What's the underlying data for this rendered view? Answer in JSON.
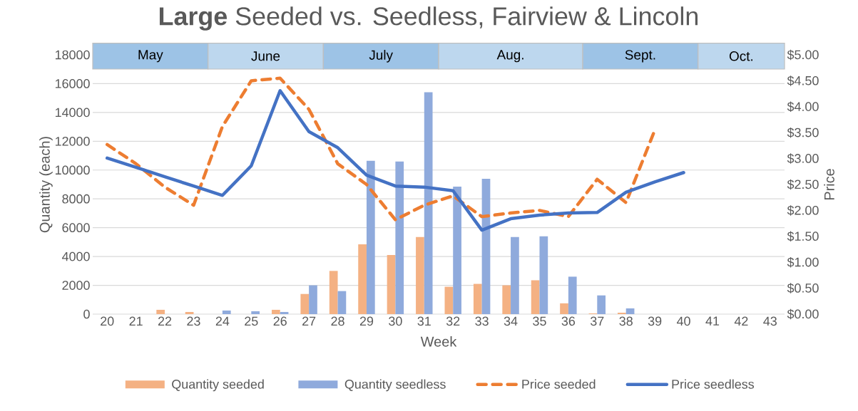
{
  "chart_data": {
    "type": "bar",
    "title": "**Large** Seeded vs. Seedless, Fairview & Lincoln",
    "xlabel": "Week",
    "ylabel": "Quantity (each)",
    "y2label": "Price",
    "x": [
      20,
      21,
      22,
      23,
      24,
      25,
      26,
      27,
      28,
      29,
      30,
      31,
      32,
      33,
      34,
      35,
      36,
      37,
      38,
      39,
      40,
      41,
      42,
      43
    ],
    "xlim": [
      19.5,
      43.5
    ],
    "xticks": [
      20,
      21,
      22,
      23,
      24,
      25,
      26,
      27,
      28,
      29,
      30,
      31,
      32,
      33,
      34,
      35,
      36,
      37,
      38,
      39,
      40,
      41,
      42,
      43
    ],
    "ylim": [
      0,
      18000
    ],
    "yticks": [
      0,
      2000,
      4000,
      6000,
      8000,
      10000,
      12000,
      14000,
      16000,
      18000
    ],
    "y2lim": [
      0,
      5
    ],
    "y2ticks": [
      {
        "value": 0,
        "label": "$0.00"
      },
      {
        "value": 0.5,
        "label": "$0.50"
      },
      {
        "value": 1,
        "label": "$1.00"
      },
      {
        "value": 1.5,
        "label": "$1.50"
      },
      {
        "value": 2,
        "label": "$2.00"
      },
      {
        "value": 2.5,
        "label": "$2.50"
      },
      {
        "value": 3,
        "label": "$3.00"
      },
      {
        "value": 3.5,
        "label": "$3.50"
      },
      {
        "value": 4,
        "label": "$4.00"
      },
      {
        "value": 4.5,
        "label": "$4.50"
      },
      {
        "value": 5,
        "label": "$5.00"
      }
    ],
    "series": [
      {
        "name": "Quantity seeded",
        "color": "#f4b183",
        "values": [
          0,
          0,
          300,
          150,
          0,
          0,
          300,
          1400,
          3000,
          4850,
          4100,
          5350,
          1900,
          2100,
          2000,
          2350,
          750,
          50,
          100,
          0,
          0,
          0,
          0,
          0
        ]
      },
      {
        "name": "Quantity seedless",
        "color": "#8faadc",
        "values": [
          0,
          0,
          0,
          0,
          250,
          200,
          150,
          2000,
          1600,
          10650,
          10600,
          15400,
          8850,
          9400,
          5350,
          5400,
          2600,
          1300,
          400,
          0,
          0,
          0,
          0,
          0
        ]
      },
      {
        "name": "Price seeded",
        "type": "line",
        "axis": "y2",
        "line_style": "dashed",
        "color": "#ed7d31",
        "values": [
          3.27,
          2.9,
          2.45,
          2.1,
          3.62,
          4.5,
          4.55,
          3.95,
          2.9,
          2.5,
          1.82,
          2.1,
          2.28,
          1.88,
          1.95,
          2.0,
          1.88,
          2.6,
          2.15,
          3.55,
          null,
          null,
          null,
          null
        ]
      },
      {
        "name": "Price seedless",
        "type": "line",
        "axis": "y2",
        "line_style": "solid",
        "color": "#4472c4",
        "values": [
          3.01,
          2.83,
          2.65,
          2.47,
          2.29,
          2.86,
          4.31,
          3.52,
          3.21,
          2.68,
          2.47,
          2.45,
          2.38,
          1.62,
          1.84,
          1.91,
          1.95,
          1.96,
          2.35,
          2.55,
          2.73,
          null,
          null,
          null
        ]
      }
    ],
    "bands": [
      {
        "axis": "x",
        "from": 19.5,
        "to": 23.5,
        "label": "May",
        "color": "#9dc3e6"
      },
      {
        "axis": "x",
        "from": 23.5,
        "to": 27.5,
        "label": "June",
        "color": "#bdd7ee"
      },
      {
        "axis": "x",
        "from": 27.5,
        "to": 31.5,
        "label": "July",
        "color": "#9dc3e6"
      },
      {
        "axis": "x",
        "from": 31.5,
        "to": 36.5,
        "label": "Aug.",
        "color": "#bdd7ee"
      },
      {
        "axis": "x",
        "from": 36.5,
        "to": 40.5,
        "label": "Sept.",
        "color": "#9dc3e6"
      },
      {
        "axis": "x",
        "from": 40.5,
        "to": 43.5,
        "label": "Oct.",
        "color": "#bdd7ee"
      }
    ],
    "grid": "y",
    "legend": "bottom"
  }
}
